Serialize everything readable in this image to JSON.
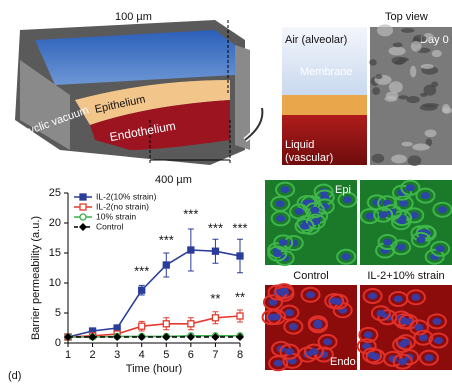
{
  "chart_data": {
    "type": "line",
    "x": [
      1,
      2,
      3,
      4,
      5,
      6,
      7,
      8
    ],
    "xlim": [
      1,
      8
    ],
    "xticks": [
      1,
      2,
      3,
      4,
      5,
      6,
      7,
      8
    ],
    "ylim": [
      0,
      25
    ],
    "yticks": [
      0,
      5,
      10,
      15,
      20,
      25
    ],
    "x_label": "Time (hour)",
    "y_label": "Barrier permeability (a.u.)",
    "legend": "upper left",
    "series": [
      {
        "name": "IL-2(10% strain)",
        "color": "#2a3d9a",
        "marker": "square-filled",
        "linestyle": "solid",
        "values": [
          1.0,
          2.0,
          2.5,
          8.8,
          13,
          15.5,
          15.3,
          14.5
        ],
        "errors": [
          0.3,
          0.4,
          0.5,
          0.8,
          2,
          3.5,
          2,
          2.8
        ]
      },
      {
        "name": "IL-2(no strain)",
        "color": "#e23b2e",
        "marker": "square-open",
        "linestyle": "solid",
        "values": [
          1.0,
          1.2,
          1.5,
          2.8,
          3.2,
          3.2,
          4.2,
          4.5
        ],
        "errors": [
          0.3,
          0.3,
          0.4,
          0.8,
          1,
          1,
          1,
          1
        ]
      },
      {
        "name": "10% strain",
        "color": "#3cb04a",
        "marker": "circle-open",
        "linestyle": "solid",
        "values": [
          1.0,
          1.0,
          1.1,
          1.1,
          1.1,
          1.2,
          1.2,
          1.2
        ],
        "errors": [
          0.2,
          0.2,
          0.2,
          0.2,
          0.2,
          0.2,
          0.2,
          0.2
        ]
      },
      {
        "name": "Control",
        "color": "#000000",
        "marker": "diamond-filled",
        "linestyle": "dashed",
        "values": [
          1.0,
          1.0,
          1.0,
          1.0,
          1.0,
          1.0,
          1.0,
          1.0
        ]
      }
    ],
    "annotations": [
      {
        "text": "***",
        "x": 4,
        "y": 11.8
      },
      {
        "text": "***",
        "x": 5,
        "y": 17
      },
      {
        "text": "***",
        "x": 6,
        "y": 21.3
      },
      {
        "text": "***",
        "x": 7,
        "y": 19
      },
      {
        "text": "***",
        "x": 8,
        "y": 19
      },
      {
        "text": "**",
        "x": 7,
        "y": 7.2
      },
      {
        "text": "**",
        "x": 8,
        "y": 7.5
      }
    ]
  },
  "panel_label": "(d)",
  "device": {
    "thickness": "100 µm",
    "width": "400 µm",
    "vacuum": "Cyclic vacuum",
    "top_layer": "Epithelium",
    "bottom_layer": "Endothelium"
  },
  "cross_section": {
    "top": "Air (alveolar)",
    "middle": "Membrane",
    "bottom": "Liquid (vascular)"
  },
  "sem": {
    "title": "Top view",
    "label": "Day 0"
  },
  "micrographs": {
    "epi_label": "Epi",
    "endo_label": "Endo",
    "left_title": "Control",
    "right_title": "IL-2+10% strain"
  }
}
